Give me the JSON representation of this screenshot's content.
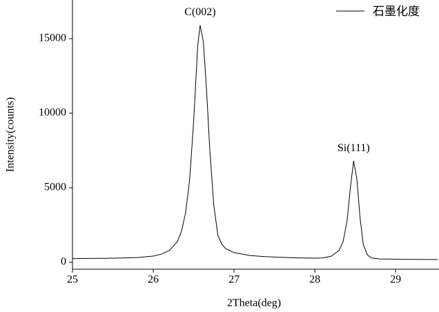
{
  "chart_data": {
    "type": "line",
    "x_label": "2Theta(deg)",
    "y_label": "Intensity(counts)",
    "xlim": [
      25,
      29.52
    ],
    "ylim": [
      -460,
      17590
    ],
    "xticks": [
      25,
      26,
      27,
      28,
      29
    ],
    "yticks": [
      0,
      5000,
      10000,
      15000
    ],
    "legend": "top-right",
    "annotations": [
      {
        "text": "C(002)",
        "x": 26.58,
        "y": 15900
      },
      {
        "text": "Si(111)",
        "x": 28.48,
        "y": 6800
      }
    ],
    "x": [
      25.0,
      25.2,
      25.4,
      25.6,
      25.8,
      26.0,
      26.1,
      26.2,
      26.3,
      26.35,
      26.4,
      26.45,
      26.5,
      26.55,
      26.58,
      26.62,
      26.66,
      26.7,
      26.75,
      26.8,
      26.85,
      26.9,
      27.0,
      27.2,
      27.4,
      27.6,
      27.8,
      28.0,
      28.1,
      28.2,
      28.3,
      28.35,
      28.4,
      28.44,
      28.48,
      28.52,
      28.56,
      28.6,
      28.65,
      28.7,
      28.8,
      29.0,
      29.2,
      29.52
    ],
    "series": [
      {
        "name": "石墨化度",
        "color": "#000000",
        "values": [
          250,
          260,
          270,
          290,
          320,
          420,
          550,
          800,
          1400,
          2100,
          3300,
          5500,
          9500,
          14500,
          15900,
          14800,
          11500,
          7500,
          3800,
          1800,
          1200,
          900,
          650,
          450,
          380,
          330,
          300,
          280,
          300,
          400,
          800,
          1400,
          2800,
          5000,
          6800,
          5600,
          3000,
          1200,
          500,
          300,
          230,
          210,
          200,
          190
        ]
      }
    ]
  }
}
